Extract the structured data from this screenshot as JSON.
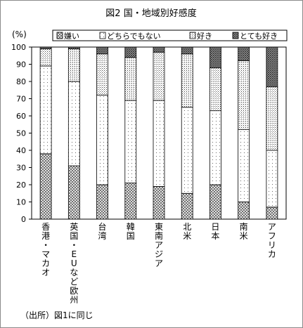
{
  "chart_data": {
    "type": "bar",
    "stacked": true,
    "title": "図2 国・地域別好感度",
    "ylabel": "(%)",
    "ylim": [
      0,
      100
    ],
    "yticks": [
      0,
      10,
      20,
      30,
      40,
      50,
      60,
      70,
      80,
      90,
      100
    ],
    "grid": false,
    "legend_position": "top",
    "categories": [
      "香港・マカオ",
      "英国・EUなど欧州",
      "台湾",
      "韓国",
      "東南アジア",
      "北米",
      "日本",
      "南米",
      "アフリカ"
    ],
    "series": [
      {
        "name": "嫌い",
        "pattern": "crosshatch",
        "values": [
          38,
          31,
          20,
          21,
          19,
          15,
          20,
          10,
          7
        ]
      },
      {
        "name": "どちらでもない",
        "pattern": "sparse-dots",
        "values": [
          51,
          49,
          52,
          48,
          50,
          50,
          43,
          42,
          33
        ]
      },
      {
        "name": "好き",
        "pattern": "dense-dots",
        "values": [
          10,
          19,
          24,
          25,
          28,
          31,
          25,
          40,
          37
        ]
      },
      {
        "name": "とても好き",
        "pattern": "dark-crosshatch",
        "values": [
          1,
          1,
          4,
          6,
          3,
          4,
          12,
          8,
          23
        ]
      }
    ],
    "source_note": "（出所）図1に同じ"
  }
}
